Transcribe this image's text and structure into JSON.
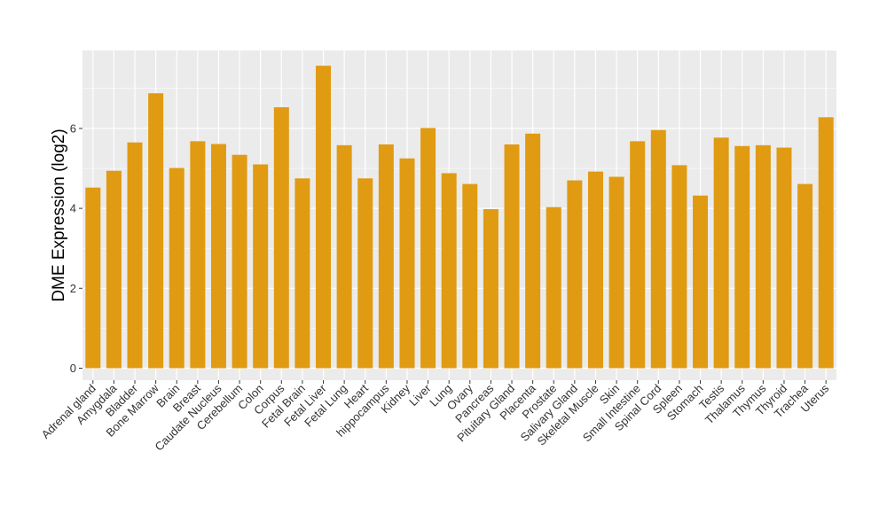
{
  "chart_data": {
    "type": "bar",
    "ylabel": "DME Expression (log2)",
    "xlabel": "",
    "ylim": [
      -0.3,
      7.95
    ],
    "yticks": [
      0,
      2,
      4,
      6
    ],
    "bar_color": "#E09B12",
    "panel_color": "#EBEBEB",
    "grid": true,
    "categories": [
      "Adrenal gland",
      "Amygdala",
      "Bladder",
      "Bone Marrow",
      "Brain",
      "Breast",
      "Caudate Nucleus",
      "Cerebellum",
      "Colon",
      "Corpus",
      "Fetal Brain",
      "Fetal Liver",
      "Fetal Lung",
      "Heart",
      "hippocampus",
      "Kidney",
      "Liver",
      "Lung",
      "Ovary",
      "Pancreas",
      "Pituitary Gland",
      "Placenta",
      "Prostate",
      "Salivary Gland",
      "Skeletal Muscle",
      "Skin",
      "Small Intestine",
      "Spinal Cord",
      "Spleen",
      "Stomach",
      "Testis",
      "Thalamus",
      "Thymus",
      "Thyroid",
      "Trachea",
      "Uterus"
    ],
    "values": [
      4.52,
      4.94,
      5.65,
      6.88,
      5.01,
      5.68,
      5.61,
      5.34,
      5.1,
      6.53,
      4.75,
      7.57,
      5.58,
      4.75,
      5.6,
      5.25,
      6.01,
      4.88,
      4.61,
      3.98,
      5.6,
      5.87,
      4.03,
      4.7,
      4.92,
      4.79,
      5.68,
      5.96,
      5.08,
      4.32,
      5.77,
      5.56,
      5.58,
      5.52,
      4.61,
      6.28
    ]
  }
}
